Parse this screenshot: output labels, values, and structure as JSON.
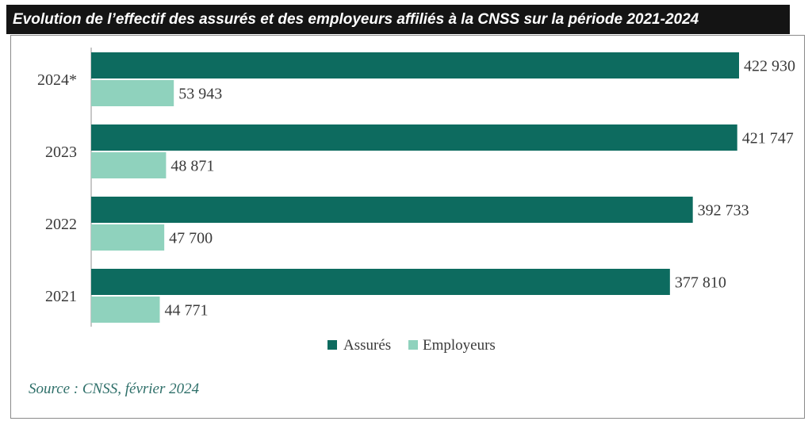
{
  "header": {
    "title": "Evolution de l’effectif des assurés et des employeurs affiliés à la CNSS sur la période 2021-2024"
  },
  "colors": {
    "assures": "#0d6b5f",
    "employeurs": "#8fd2bd",
    "axis": "#b5b5b5",
    "text": "#3a3a3a",
    "source": "#2e6f69"
  },
  "chart_data": {
    "type": "bar",
    "orientation": "horizontal",
    "categories": [
      "2024*",
      "2023",
      "2022",
      "2021"
    ],
    "series": [
      {
        "name": "Assurés",
        "values": [
          422930,
          421747,
          392733,
          377810
        ],
        "labels": [
          "422 930",
          "421 747",
          "392 733",
          "377 810"
        ]
      },
      {
        "name": "Employeurs",
        "values": [
          53943,
          48871,
          47700,
          44771
        ],
        "labels": [
          "53 943",
          "48 871",
          "47 700",
          "44 771"
        ]
      }
    ],
    "xlim": [
      0,
      422930
    ],
    "grid": false,
    "legend": "bottom"
  },
  "footer": {
    "source": "Source : CNSS, février 2024"
  }
}
